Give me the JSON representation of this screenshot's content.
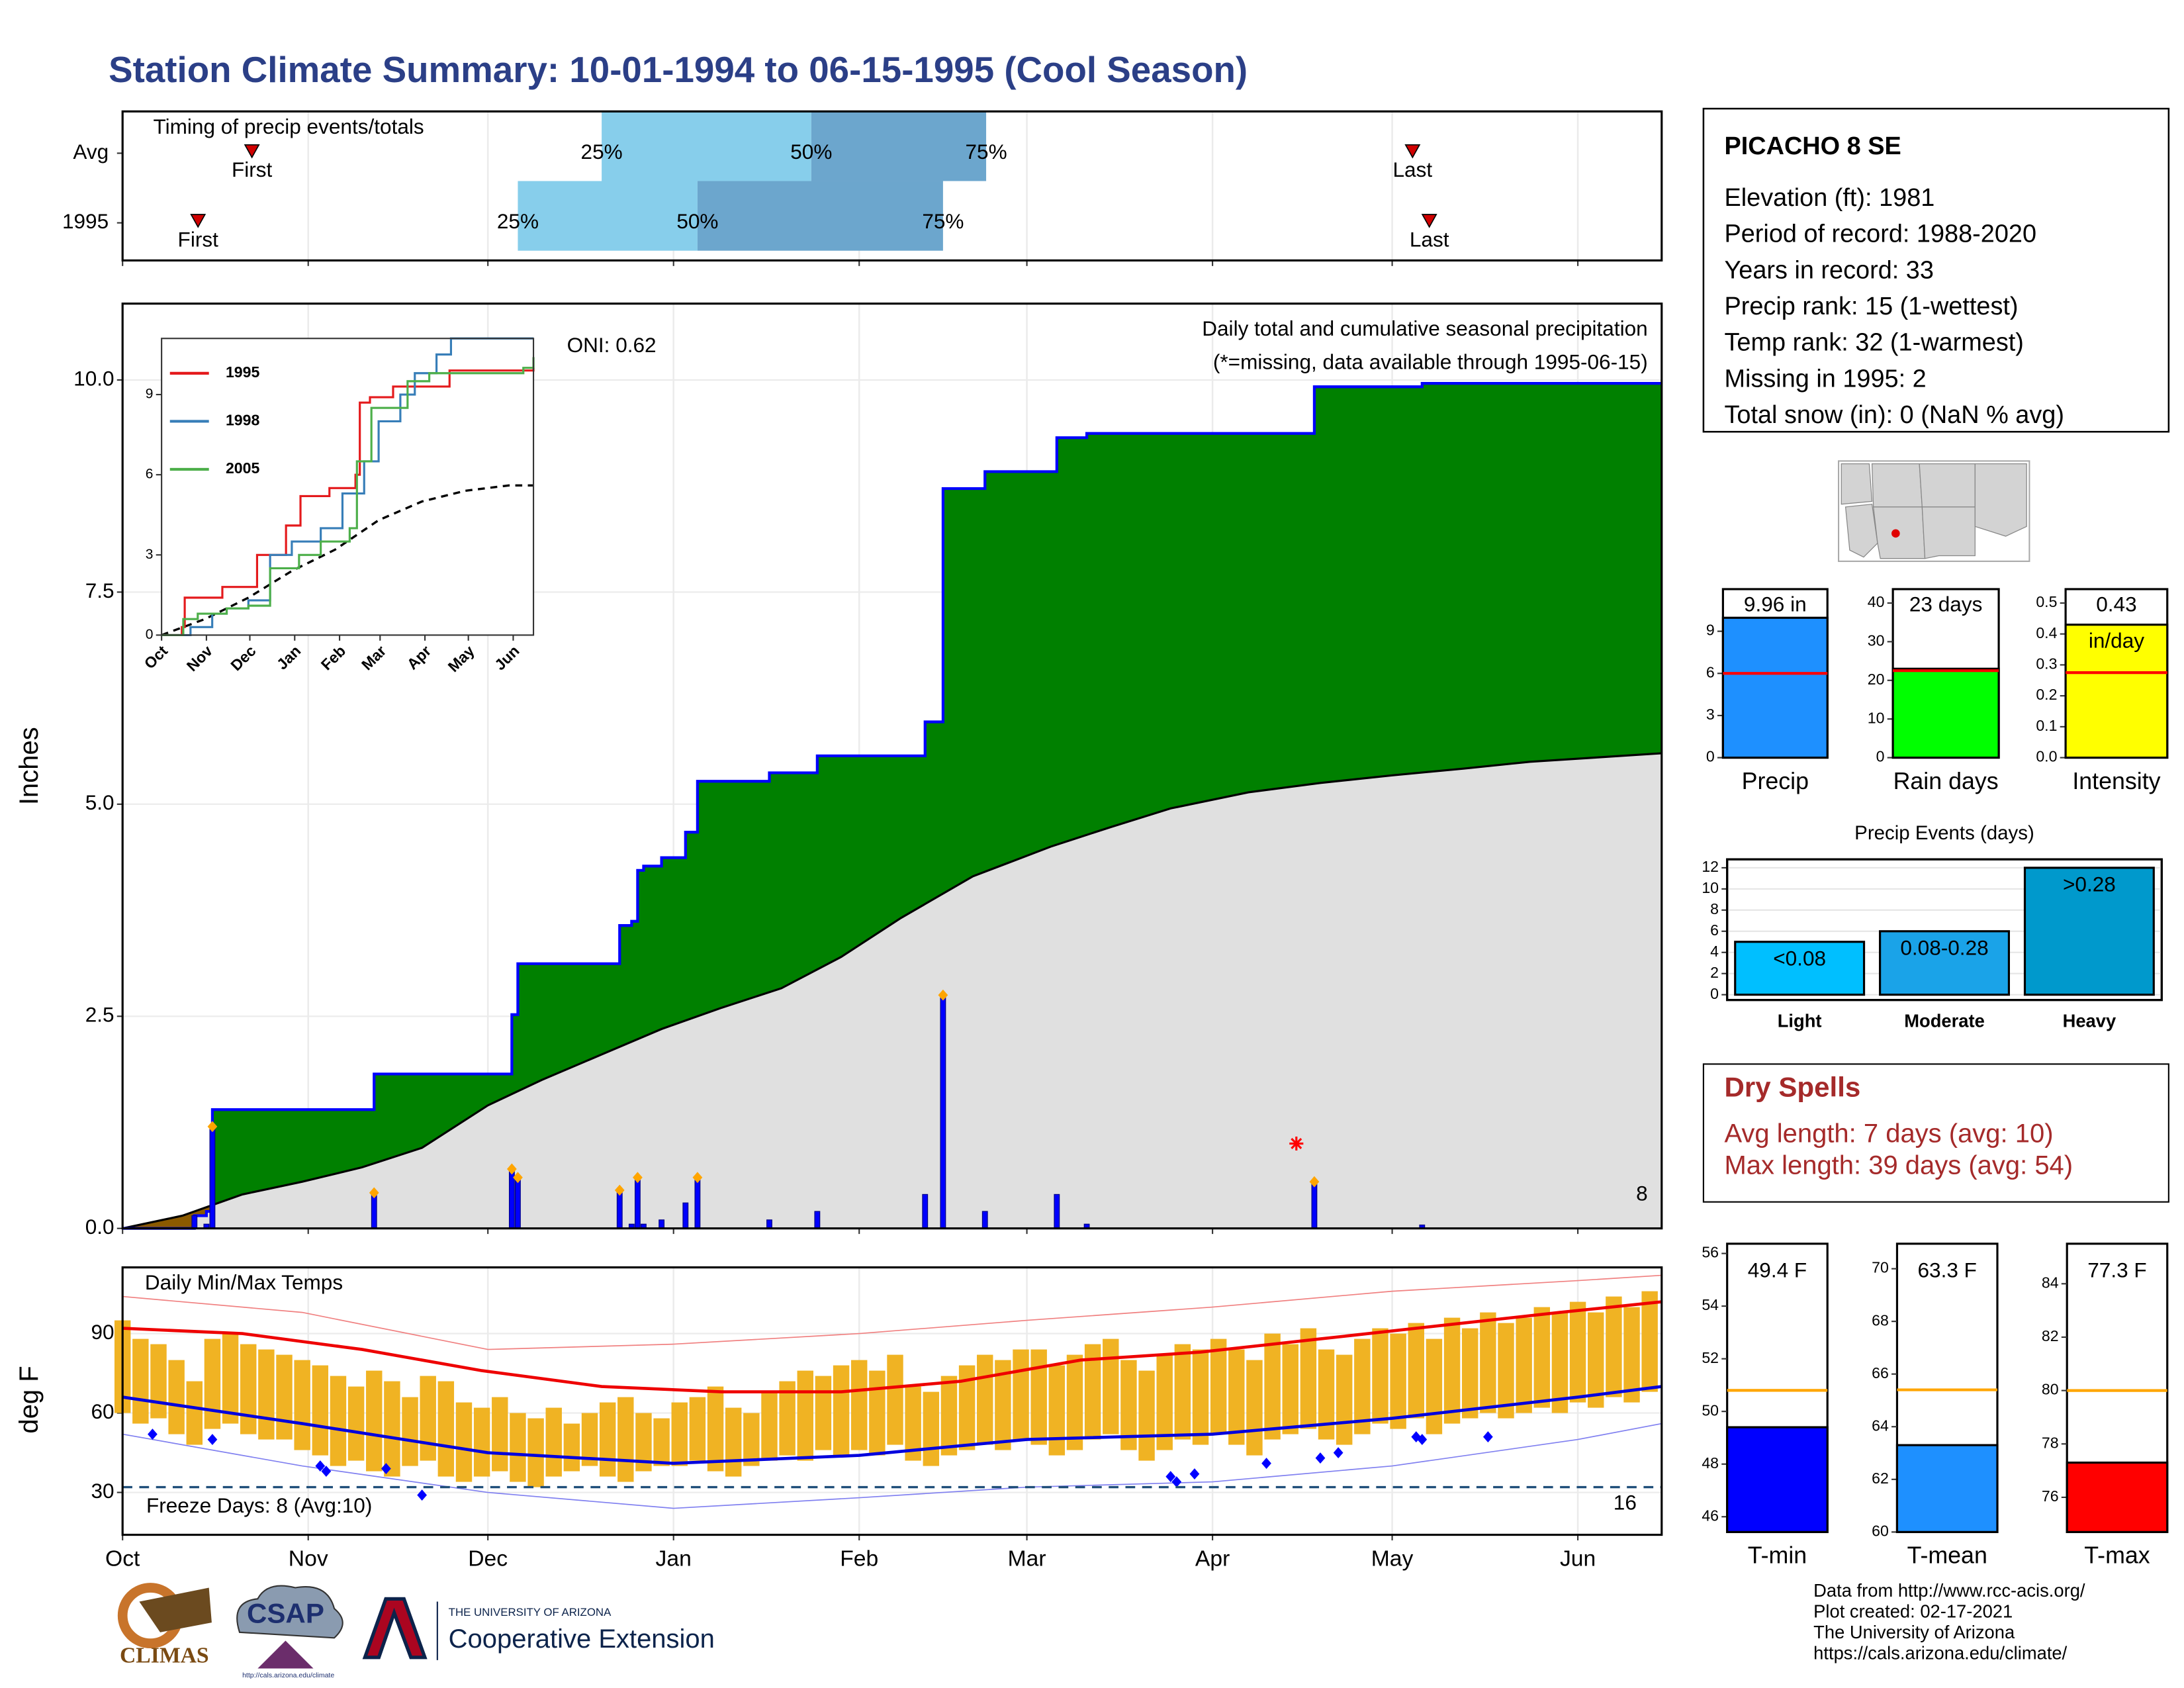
{
  "title": "Station Climate Summary: 10-01-1994 to 06-15-1995 (Cool Season)",
  "station": {
    "name": "PICACHO 8 SE",
    "lines": [
      "Elevation (ft): 1981",
      "Period of record: 1988-2020",
      "Years in record: 33",
      "Precip rank: 15 (1-wettest)",
      "Temp rank: 32 (1-warmest)",
      "Missing in 1995: 2",
      "Total snow (in): 0 (NaN % avg)"
    ]
  },
  "dry_spells": {
    "title": "Dry Spells",
    "lines": [
      "Avg length: 7 days (avg: 10)",
      "Max length: 39 days (avg: 54)"
    ]
  },
  "footer": [
    "Data from http://www.rcc-acis.org/",
    "Plot created: 02-17-2021",
    "The University of Arizona",
    "https://cals.arizona.edu/climate/"
  ],
  "logos": {
    "climas": "CLIMAS",
    "csap": "CSAP",
    "csap_url": "http://cals.arizona.edu/climate",
    "university": "THE UNIVERSITY OF ARIZONA",
    "extension": "Cooperative Extension"
  },
  "chart_data": [
    {
      "type": "timing",
      "title": "Timing of precip events/totals",
      "categories": [
        "Avg",
        "1995"
      ],
      "series": [
        {
          "name": "First",
          "values": [
            21.6,
            12.6
          ]
        },
        {
          "name": "25%",
          "values": [
            80,
            66
          ]
        },
        {
          "name": "50%",
          "values": [
            115,
            96
          ]
        },
        {
          "name": "75%",
          "values": [
            144.2,
            137
          ]
        },
        {
          "name": "Last",
          "values": [
            215.4,
            218.2
          ]
        }
      ],
      "colors": [
        "#87ceeb",
        "#6ca6cd"
      ],
      "marker_color": "#d00000",
      "xlim": [
        0,
        257
      ],
      "xticks": [
        0,
        31,
        61,
        92,
        123,
        151,
        182,
        212,
        243
      ],
      "grid": true
    },
    {
      "type": "precip",
      "title": "Daily total and cumulative seasonal precipitation",
      "subtitle": "(*=missing, data available through 1995-06-15)",
      "annotation": "ONI: 0.62",
      "corner_label": "8",
      "ylabel": "Inches",
      "xlim": [
        0,
        257
      ],
      "xticks": [
        0,
        31,
        61,
        92,
        123,
        151,
        182,
        212,
        243
      ],
      "ylim": [
        0,
        10.9
      ],
      "yticks": [
        {
          "value": 0,
          "label": "0.0"
        },
        {
          "value": 2.5,
          "label": "2.5"
        },
        {
          "value": 5,
          "label": "5.0"
        },
        {
          "value": 7.5,
          "label": "7.5"
        },
        {
          "value": 10,
          "label": "10.0"
        }
      ],
      "grid": true,
      "daily": {
        "x": [
          12,
          14,
          15,
          42,
          65,
          66,
          83,
          85,
          86,
          87,
          90,
          94,
          96,
          108,
          116,
          134,
          137,
          144,
          156,
          161,
          199,
          217
        ],
        "values": [
          0.15,
          0.05,
          1.2,
          0.42,
          0.7,
          0.6,
          0.45,
          0.05,
          0.6,
          0.05,
          0.1,
          0.3,
          0.6,
          0.1,
          0.2,
          0.4,
          2.75,
          0.2,
          0.4,
          0.05,
          0.55,
          0.04
        ],
        "color": "#0000ff"
      },
      "average": {
        "x": [
          0,
          10,
          20,
          30,
          40,
          50,
          61,
          70,
          80,
          90,
          100,
          110,
          120,
          130,
          142,
          155,
          165,
          175,
          188,
          200,
          212,
          224,
          235,
          246,
          257
        ],
        "values": [
          0,
          0.15,
          0.4,
          0.55,
          0.72,
          0.95,
          1.45,
          1.75,
          2.05,
          2.35,
          2.6,
          2.83,
          3.2,
          3.66,
          4.15,
          4.5,
          4.73,
          4.95,
          5.14,
          5.25,
          5.34,
          5.42,
          5.5,
          5.55,
          5.6
        ],
        "color": "#e0e0e0"
      },
      "above_color": "#008000",
      "below_color": "#8b5a00",
      "marker_color": "orange",
      "missing": {
        "x": [
          196
        ],
        "values": [
          1.0
        ],
        "color": "red"
      }
    },
    {
      "type": "line",
      "xlim": [
        0,
        257
      ],
      "ylim": [
        0,
        11.1
      ],
      "yticks": [
        0,
        3,
        6,
        9
      ],
      "xticks": [
        {
          "value": 0,
          "label": "Oct"
        },
        {
          "value": 31,
          "label": "Nov"
        },
        {
          "value": 61,
          "label": "Dec"
        },
        {
          "value": 92,
          "label": "Jan"
        },
        {
          "value": 123,
          "label": "Feb"
        },
        {
          "value": 151,
          "label": "Mar"
        },
        {
          "value": 182,
          "label": "Apr"
        },
        {
          "value": 212,
          "label": "May"
        },
        {
          "value": 243,
          "label": "Jun"
        }
      ],
      "series": [
        {
          "name": "1995",
          "color": "#e41a1c",
          "x": [
            0,
            14,
            16,
            42,
            66,
            86,
            96,
            116,
            134,
            137,
            144,
            160,
            199,
            257
          ],
          "values": [
            0,
            0.3,
            1.4,
            1.8,
            3.0,
            4.1,
            5.2,
            5.5,
            6.0,
            8.7,
            8.9,
            9.3,
            9.9,
            10.0
          ]
        },
        {
          "name": "1998",
          "color": "#377eb8",
          "x": [
            0,
            20,
            35,
            45,
            60,
            75,
            90,
            110,
            125,
            140,
            150,
            165,
            175,
            190,
            200,
            257
          ],
          "values": [
            0,
            0.3,
            0.8,
            1.0,
            1.3,
            3.0,
            3.5,
            4.0,
            5.3,
            6.5,
            8.0,
            9.0,
            9.8,
            10.5,
            11.1,
            11.1
          ]
        },
        {
          "name": "2005",
          "color": "#4daf4a",
          "x": [
            0,
            15,
            25,
            45,
            60,
            75,
            95,
            110,
            130,
            135,
            145,
            170,
            185,
            250,
            257
          ],
          "values": [
            0,
            0.6,
            0.8,
            1.0,
            1.1,
            2.5,
            3.0,
            3.5,
            4.0,
            6.5,
            8.5,
            9.5,
            9.8,
            10.0,
            10.4
          ]
        }
      ],
      "average": {
        "x": [
          0,
          30,
          60,
          90,
          120,
          150,
          180,
          210,
          240,
          257
        ],
        "values": [
          0,
          0.6,
          1.4,
          2.4,
          3.2,
          4.3,
          5.0,
          5.4,
          5.6,
          5.6
        ],
        "color": "#000000"
      }
    },
    {
      "type": "temp",
      "title": "Daily Min/Max Temps",
      "annotation": "Freeze Days: 8 (Avg:10)",
      "corner_label": "16",
      "ylabel": "deg F",
      "freeze": 32,
      "xlim": [
        0,
        257
      ],
      "ylim": [
        14,
        115
      ],
      "yticks": [
        30,
        60,
        90
      ],
      "grid": true,
      "xticks": [
        {
          "value": 0,
          "label": "Oct"
        },
        {
          "value": 31,
          "label": "Nov"
        },
        {
          "value": 61,
          "label": "Dec"
        },
        {
          "value": 92,
          "label": "Jan"
        },
        {
          "value": 123,
          "label": "Feb"
        },
        {
          "value": 151,
          "label": "Mar"
        },
        {
          "value": 182,
          "label": "Apr"
        },
        {
          "value": 212,
          "label": "May"
        },
        {
          "value": 243,
          "label": "Jun"
        }
      ],
      "daily": {
        "x": [
          0,
          3,
          6,
          9,
          12,
          15,
          18,
          21,
          24,
          27,
          30,
          33,
          36,
          39,
          42,
          45,
          48,
          51,
          54,
          57,
          60,
          63,
          66,
          69,
          72,
          75,
          78,
          81,
          84,
          87,
          90,
          93,
          96,
          99,
          102,
          105,
          108,
          111,
          114,
          117,
          120,
          123,
          126,
          129,
          132,
          135,
          138,
          141,
          144,
          147,
          150,
          153,
          156,
          159,
          162,
          165,
          168,
          171,
          174,
          177,
          180,
          183,
          186,
          189,
          192,
          195,
          198,
          201,
          204,
          207,
          210,
          213,
          216,
          219,
          222,
          225,
          228,
          231,
          234,
          237,
          240,
          243,
          246,
          249,
          252,
          255
        ],
        "max": [
          95,
          88,
          86,
          80,
          72,
          88,
          90,
          86,
          84,
          82,
          80,
          78,
          74,
          70,
          76,
          72,
          66,
          74,
          72,
          64,
          62,
          66,
          60,
          58,
          62,
          56,
          60,
          64,
          66,
          60,
          58,
          64,
          66,
          70,
          62,
          60,
          68,
          72,
          76,
          74,
          78,
          80,
          76,
          82,
          70,
          68,
          74,
          78,
          82,
          80,
          84,
          84,
          78,
          82,
          86,
          88,
          80,
          76,
          82,
          86,
          84,
          88,
          84,
          80,
          90,
          86,
          92,
          84,
          82,
          88,
          92,
          90,
          94,
          88,
          96,
          92,
          98,
          94,
          96,
          100,
          98,
          102,
          98,
          104,
          100,
          106
        ],
        "min": [
          60,
          56,
          58,
          52,
          48,
          54,
          56,
          52,
          50,
          50,
          46,
          44,
          40,
          42,
          38,
          36,
          40,
          42,
          36,
          34,
          36,
          38,
          34,
          32,
          36,
          38,
          40,
          36,
          34,
          38,
          40,
          40,
          42,
          38,
          36,
          40,
          42,
          44,
          42,
          46,
          44,
          46,
          44,
          48,
          42,
          40,
          44,
          46,
          48,
          46,
          50,
          48,
          44,
          46,
          50,
          52,
          46,
          42,
          46,
          50,
          48,
          52,
          48,
          44,
          50,
          52,
          54,
          50,
          48,
          52,
          56,
          54,
          58,
          52,
          56,
          58,
          60,
          58,
          60,
          62,
          60,
          64,
          62,
          66,
          64,
          68
        ],
        "color": "#f0b323"
      },
      "avg_max": {
        "x": [
          0,
          20,
          40,
          60,
          80,
          100,
          120,
          140,
          160,
          180,
          200,
          220,
          240,
          257
        ],
        "values": [
          92,
          90,
          84,
          76,
          70,
          68,
          68,
          72,
          80,
          83,
          88,
          93,
          98,
          102
        ],
        "color": "#ee0000"
      },
      "avg_min": {
        "x": [
          0,
          30,
          61,
          92,
          123,
          151,
          182,
          212,
          243,
          257
        ],
        "values": [
          66,
          56,
          45,
          41,
          44,
          50,
          52,
          58,
          66,
          70
        ],
        "color": "#0000dd"
      },
      "upper_envelope": {
        "x": [
          0,
          30,
          61,
          92,
          123,
          151,
          182,
          212,
          243,
          257
        ],
        "values": [
          104,
          98,
          84,
          86,
          90,
          95,
          100,
          106,
          110,
          112
        ],
        "color": "#f08080"
      },
      "lower_envelope": {
        "x": [
          0,
          30,
          61,
          92,
          123,
          151,
          182,
          212,
          243,
          257
        ],
        "values": [
          52,
          40,
          30,
          24,
          28,
          32,
          34,
          40,
          50,
          56
        ],
        "color": "#8080f0"
      },
      "low_points": {
        "x": [
          5,
          15,
          33,
          34,
          44,
          50,
          175,
          176,
          179,
          191,
          200,
          203,
          216,
          217,
          228
        ],
        "values": [
          52,
          50,
          40,
          38,
          39,
          29,
          36,
          34,
          37,
          41,
          43,
          45,
          51,
          50,
          51
        ],
        "color": "#0000ff"
      },
      "freeze_color": "#1f4e79"
    },
    {
      "type": "bar",
      "xlabel": "Precip",
      "values": [
        9.96
      ],
      "value_labels": [
        "9.96 in"
      ],
      "color": "#1e90ff",
      "reference": 6.0,
      "reference_color": "red",
      "ylim": [
        0,
        12
      ],
      "yticks": [
        0,
        3,
        6,
        9
      ]
    },
    {
      "type": "bar",
      "xlabel": "Rain days",
      "values": [
        23
      ],
      "value_labels": [
        "23 days"
      ],
      "color": "#00ff00",
      "reference": 22.5,
      "reference_color": "red",
      "ylim": [
        0,
        43.6
      ],
      "yticks": [
        0,
        10,
        20,
        30,
        40
      ]
    },
    {
      "type": "bar",
      "xlabel": "Intensity",
      "values": [
        0.43
      ],
      "unit": "in/day",
      "color": "#ffff00",
      "reference": 0.275,
      "reference_color": "red",
      "ylim": [
        0,
        0.545
      ],
      "yticks": [
        {
          "value": 0,
          "label": "0.0"
        },
        0.1,
        0.2,
        0.3,
        0.4,
        0.5
      ]
    },
    {
      "type": "bar",
      "title": "Precip Events (days)",
      "categories": [
        "Light",
        "Moderate",
        "Heavy"
      ],
      "values": [
        5,
        6,
        12
      ],
      "value_labels": [
        "<0.08",
        "0.08-0.28",
        ">0.28"
      ],
      "colors": [
        "#00bfff",
        "#1aa3e8",
        "#0099cc"
      ],
      "ylim": [
        -0.5,
        12.8
      ],
      "yticks": [
        0,
        2,
        4,
        6,
        8,
        10,
        12
      ],
      "grid": true
    },
    {
      "type": "bar",
      "xlabel": "T-min",
      "values": [
        49.4
      ],
      "value_labels": [
        "49.4 F"
      ],
      "color": "#0000ff",
      "reference": 50.8,
      "reference_color": "orange",
      "ylim": [
        45.42,
        56.37
      ],
      "yticks": [
        46,
        48,
        50,
        52,
        54,
        56
      ]
    },
    {
      "type": "bar",
      "xlabel": "T-mean",
      "values": [
        63.3
      ],
      "value_labels": [
        "63.3 F"
      ],
      "color": "#1e90ff",
      "reference": 65.4,
      "reference_color": "orange",
      "ylim": [
        60,
        70.95
      ],
      "yticks": [
        60,
        62,
        64,
        66,
        68,
        70
      ]
    },
    {
      "type": "bar",
      "xlabel": "T-max",
      "values": [
        77.3
      ],
      "value_labels": [
        "77.3 F"
      ],
      "color": "#ff0000",
      "reference": 80,
      "reference_color": "orange",
      "ylim": [
        74.7,
        85.5
      ],
      "yticks": [
        76,
        78,
        80,
        82,
        84
      ]
    }
  ]
}
